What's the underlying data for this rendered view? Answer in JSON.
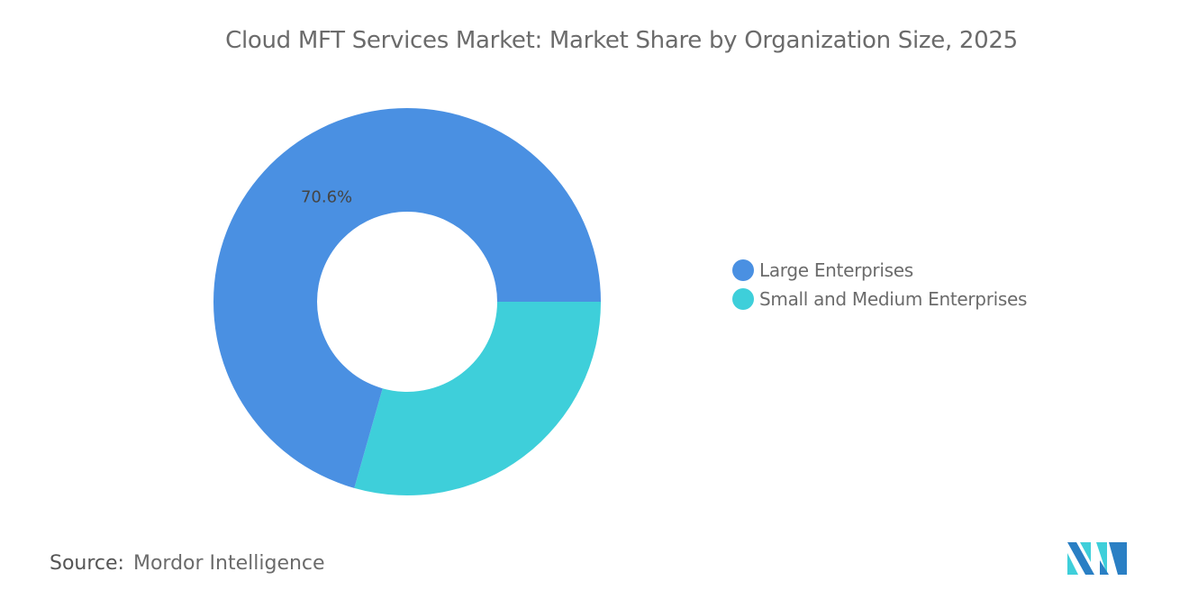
{
  "chart_data": {
    "type": "pie",
    "donut": true,
    "title": "Cloud MFT Services Market: Market Share by Organization Size, 2025",
    "categories": [
      "Large Enterprises",
      "Small and Medium Enterprises"
    ],
    "values": [
      70.6,
      29.4
    ],
    "data_labels": [
      "70.6%",
      ""
    ],
    "colors": [
      "#4a90e2",
      "#3ecfda"
    ],
    "legend_position": "right"
  },
  "source": {
    "label": "Source:",
    "value": "Mordor Intelligence"
  },
  "logo": {
    "text": "Mordor Intelligence"
  }
}
